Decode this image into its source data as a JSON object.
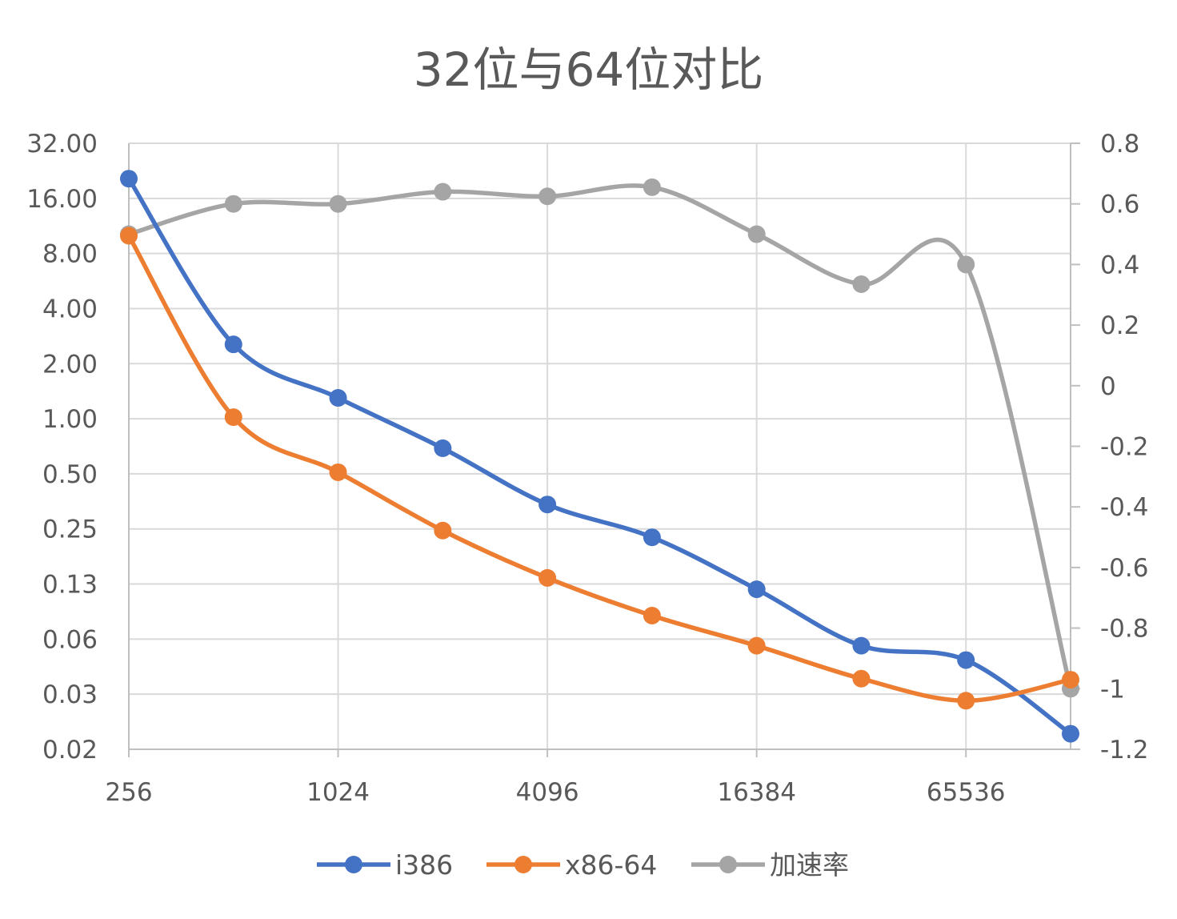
{
  "chart_data": {
    "type": "line",
    "title": "32位与64位对比",
    "x": [
      256,
      512,
      1024,
      2048,
      4096,
      8192,
      16384,
      32768,
      65536,
      131072
    ],
    "x_tick_labels": [
      "256",
      "1024",
      "4096",
      "16384",
      "65536"
    ],
    "x_tick_values": [
      256,
      1024,
      4096,
      16384,
      65536
    ],
    "x_scale": "log2",
    "y_left": {
      "scale": "log2",
      "tick_labels": [
        "32.00",
        "16.00",
        "8.00",
        "4.00",
        "2.00",
        "1.00",
        "0.50",
        "0.25",
        "0.13",
        "0.06",
        "0.03",
        "0.02"
      ],
      "tick_values": [
        32,
        16,
        8,
        4,
        2,
        1,
        0.5,
        0.25,
        0.125,
        0.0625,
        0.03125,
        0.015625
      ]
    },
    "y_right": {
      "scale": "linear",
      "tick_labels": [
        "0.8",
        "0.6",
        "0.4",
        "0.2",
        "0",
        "-0.2",
        "-0.4",
        "-0.6",
        "-0.8",
        "-1",
        "-1.2"
      ],
      "tick_values": [
        0.8,
        0.6,
        0.4,
        0.2,
        0,
        -0.2,
        -0.4,
        -0.6,
        -0.8,
        -1,
        -1.2
      ]
    },
    "grid": true,
    "legend_position": "bottom",
    "series": [
      {
        "name": "i386",
        "axis": "left",
        "color": "#4472C4",
        "values": [
          20.5,
          2.55,
          1.3,
          0.69,
          0.34,
          0.225,
          0.117,
          0.0575,
          0.048,
          0.019
        ]
      },
      {
        "name": "x86-64",
        "axis": "left",
        "color": "#ED7D31",
        "values": [
          10.0,
          1.02,
          0.51,
          0.245,
          0.135,
          0.084,
          0.0575,
          0.038,
          0.0288,
          0.0375
        ]
      },
      {
        "name": "加速率",
        "axis": "right",
        "color": "#A5A5A5",
        "values": [
          0.5,
          0.6,
          0.6,
          0.64,
          0.625,
          0.655,
          0.5,
          0.335,
          0.4,
          -1.0
        ]
      }
    ]
  }
}
